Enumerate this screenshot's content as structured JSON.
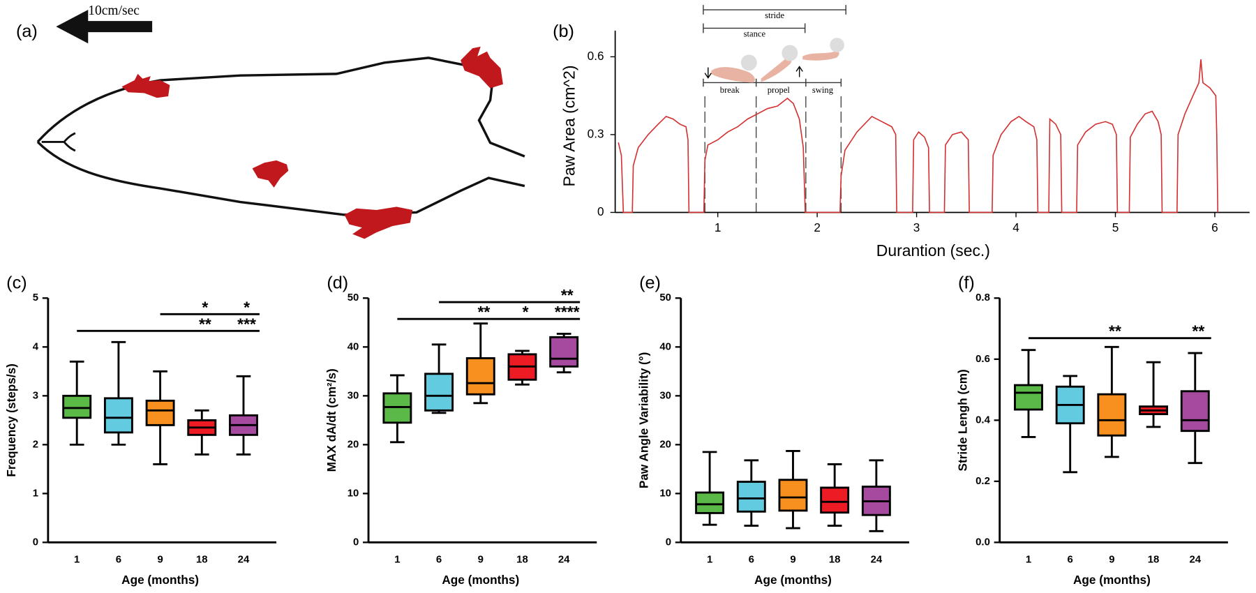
{
  "diagram": {
    "label": "(a)",
    "scale": "10cm/sec"
  },
  "chart_data": [
    {
      "type": "line",
      "label": "(b)",
      "ylabel": "Paw Area (cm^2)",
      "xlabel": "Durantion (sec.)",
      "annotations": [
        "stride",
        "stance",
        "break",
        "propel",
        "swing"
      ],
      "color": "#d32f2f",
      "xlim": [
        0,
        6.35
      ],
      "ylim": [
        0,
        0.67
      ],
      "xticks": [
        1,
        2,
        3,
        4,
        5,
        6
      ],
      "yticks": [
        0,
        0.3,
        0.6
      ],
      "x": [
        0,
        0.03,
        0.05,
        0.14,
        0.15,
        0.2,
        0.3,
        0.4,
        0.48,
        0.55,
        0.62,
        0.68,
        0.7,
        0.71,
        0.86,
        0.87,
        0.9,
        1.0,
        1.1,
        1.2,
        1.3,
        1.4,
        1.5,
        1.6,
        1.7,
        1.76,
        1.82,
        1.86,
        1.88,
        2.23,
        2.24,
        2.28,
        2.4,
        2.55,
        2.65,
        2.75,
        2.79,
        2.8,
        2.96,
        2.97,
        3.02,
        3.08,
        3.12,
        3.13,
        3.28,
        3.29,
        3.36,
        3.45,
        3.52,
        3.53,
        3.76,
        3.77,
        3.85,
        3.95,
        4.03,
        4.1,
        4.18,
        4.21,
        4.22,
        4.33,
        4.34,
        4.4,
        4.45,
        4.46,
        4.61,
        4.62,
        4.7,
        4.8,
        4.9,
        4.97,
        5.01,
        5.02,
        5.14,
        5.15,
        5.22,
        5.3,
        5.37,
        5.43,
        5.46,
        5.47,
        5.62,
        5.63,
        5.7,
        5.78,
        5.84,
        5.86,
        5.88,
        5.95,
        6.01,
        6.02,
        6.03
      ],
      "values": [
        0.27,
        0.22,
        0,
        0,
        0.18,
        0.25,
        0.3,
        0.34,
        0.37,
        0.36,
        0.34,
        0.33,
        0.28,
        0,
        0,
        0.2,
        0.26,
        0.28,
        0.31,
        0.33,
        0.36,
        0.38,
        0.4,
        0.41,
        0.44,
        0.42,
        0.36,
        0.25,
        0,
        0,
        0.14,
        0.24,
        0.31,
        0.37,
        0.35,
        0.33,
        0.3,
        0,
        0,
        0.28,
        0.31,
        0.29,
        0.25,
        0,
        0,
        0.26,
        0.3,
        0.31,
        0.28,
        0,
        0,
        0.22,
        0.3,
        0.35,
        0.37,
        0.35,
        0.33,
        0.28,
        0,
        0,
        0.36,
        0.34,
        0.3,
        0,
        0,
        0.26,
        0.31,
        0.34,
        0.35,
        0.34,
        0.3,
        0,
        0,
        0.29,
        0.34,
        0.38,
        0.39,
        0.35,
        0.3,
        0,
        0,
        0.3,
        0.38,
        0.45,
        0.5,
        0.59,
        0.5,
        0.48,
        0.45,
        0.3,
        0
      ]
    },
    {
      "type": "box",
      "label": "(c)",
      "ylabel": "Frequency (steps/s)",
      "xlabel": "Age (months)",
      "categories": [
        "1",
        "6",
        "9",
        "18",
        "24"
      ],
      "ylim": [
        0,
        5
      ],
      "yticks": [
        0,
        1,
        2,
        3,
        4,
        5
      ],
      "boxes": [
        {
          "min": 2.0,
          "q1": 2.55,
          "median": 2.75,
          "q3": 3.0,
          "max": 3.7,
          "color": "#5bb947"
        },
        {
          "min": 2.0,
          "q1": 2.25,
          "median": 2.55,
          "q3": 2.95,
          "max": 4.1,
          "color": "#63cbe0"
        },
        {
          "min": 1.6,
          "q1": 2.4,
          "median": 2.7,
          "q3": 2.9,
          "max": 3.5,
          "color": "#f7901e"
        },
        {
          "min": 1.8,
          "q1": 2.2,
          "median": 2.35,
          "q3": 2.5,
          "max": 2.7,
          "color": "#ed1c24"
        },
        {
          "min": 1.8,
          "q1": 2.2,
          "median": 2.4,
          "q3": 2.6,
          "max": 3.4,
          "color": "#a54a9e"
        }
      ],
      "significance": [
        {
          "from": "9",
          "to": "24",
          "stars": [
            {
              "at": "18",
              "text": "*",
              "color": "#ed1c24"
            },
            {
              "at": "24",
              "text": "*",
              "color": "#a54a9e"
            }
          ]
        },
        {
          "from": "1",
          "to": "24",
          "stars": [
            {
              "at": "18",
              "text": "**",
              "color": "#ed1c24"
            },
            {
              "at": "24",
              "text": "***",
              "color": "#a54a9e"
            }
          ]
        }
      ]
    },
    {
      "type": "box",
      "label": "(d)",
      "ylabel": "MAX dA/dt (cm²/s)",
      "xlabel": "Age (months)",
      "categories": [
        "1",
        "6",
        "9",
        "18",
        "24"
      ],
      "ylim": [
        0,
        50
      ],
      "yticks": [
        0,
        10,
        20,
        30,
        40,
        50
      ],
      "boxes": [
        {
          "min": 20.5,
          "q1": 24.5,
          "median": 27.7,
          "q3": 30.5,
          "max": 34.2,
          "color": "#5bb947"
        },
        {
          "min": 26.5,
          "q1": 27,
          "median": 30,
          "q3": 34.5,
          "max": 40.5,
          "color": "#63cbe0"
        },
        {
          "min": 28.5,
          "q1": 30.3,
          "median": 32.6,
          "q3": 37.7,
          "max": 44.8,
          "color": "#f7901e"
        },
        {
          "min": 32.3,
          "q1": 33.3,
          "median": 36,
          "q3": 38.5,
          "max": 39.2,
          "color": "#ed1c24"
        },
        {
          "min": 34.8,
          "q1": 36,
          "median": 37.6,
          "q3": 42,
          "max": 42.7,
          "color": "#a54a9e"
        }
      ],
      "significance": [
        {
          "from": "6",
          "to": "24",
          "stars": [
            {
              "at": "24",
              "text": "**",
              "color": "#a54a9e"
            }
          ]
        },
        {
          "from": "1",
          "to": "24",
          "stars": [
            {
              "at": "9",
              "text": "**",
              "color": "#f7901e"
            },
            {
              "at": "18",
              "text": "*",
              "color": "#ed1c24"
            },
            {
              "at": "24",
              "text": "****",
              "color": "#a54a9e"
            }
          ]
        }
      ]
    },
    {
      "type": "box",
      "label": "(e)",
      "ylabel": "Paw Angle Variability (°)",
      "xlabel": "Age (months)",
      "categories": [
        "1",
        "6",
        "9",
        "18",
        "24"
      ],
      "ylim": [
        0,
        50
      ],
      "yticks": [
        0,
        10,
        20,
        30,
        40,
        50
      ],
      "boxes": [
        {
          "min": 3.6,
          "q1": 6,
          "median": 7.8,
          "q3": 10.2,
          "max": 18.5,
          "color": "#5bb947"
        },
        {
          "min": 3.4,
          "q1": 6.3,
          "median": 9,
          "q3": 12.4,
          "max": 16.8,
          "color": "#63cbe0"
        },
        {
          "min": 2.9,
          "q1": 6.5,
          "median": 9.2,
          "q3": 12.8,
          "max": 18.7,
          "color": "#f7901e"
        },
        {
          "min": 3.4,
          "q1": 6.1,
          "median": 8.3,
          "q3": 11.2,
          "max": 16,
          "color": "#ed1c24"
        },
        {
          "min": 2.3,
          "q1": 5.6,
          "median": 8.4,
          "q3": 11.4,
          "max": 16.8,
          "color": "#a54a9e"
        }
      ]
    },
    {
      "type": "box",
      "label": "(f)",
      "ylabel": "Stride Lengh (cm)",
      "xlabel": "Age (months)",
      "categories": [
        "1",
        "6",
        "9",
        "18",
        "24"
      ],
      "ylim": [
        0,
        0.8
      ],
      "yticks": [
        {
          "value": 0,
          "label": "0.0"
        },
        0.2,
        0.4,
        0.6,
        0.8
      ],
      "boxes": [
        {
          "min": 0.345,
          "q1": 0.435,
          "median": 0.49,
          "q3": 0.515,
          "max": 0.63,
          "color": "#5bb947"
        },
        {
          "min": 0.23,
          "q1": 0.39,
          "median": 0.45,
          "q3": 0.51,
          "max": 0.545,
          "color": "#63cbe0"
        },
        {
          "min": 0.28,
          "q1": 0.35,
          "median": 0.4,
          "q3": 0.485,
          "max": 0.64,
          "color": "#f7901e"
        },
        {
          "min": 0.378,
          "q1": 0.42,
          "median": 0.432,
          "q3": 0.445,
          "max": 0.59,
          "color": "#ed1c24"
        },
        {
          "min": 0.26,
          "q1": 0.365,
          "median": 0.4,
          "q3": 0.495,
          "max": 0.62,
          "color": "#a54a9e"
        }
      ],
      "significance": [
        {
          "from": "1",
          "to": "24",
          "stars": [
            {
              "at": "9",
              "text": "**",
              "color": "#f7901e"
            },
            {
              "at": "24",
              "text": "**",
              "color": "#a54a9e"
            }
          ]
        }
      ]
    }
  ]
}
